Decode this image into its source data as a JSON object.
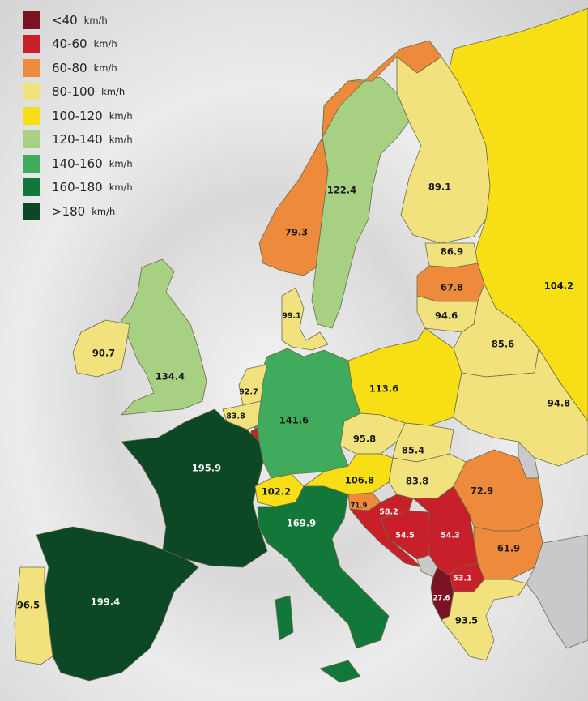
{
  "legend": [
    {
      "range": "<40",
      "unit": "km/h",
      "color": "#7a1224"
    },
    {
      "range": "40-60",
      "unit": "km/h",
      "color": "#c8202b"
    },
    {
      "range": "60-80",
      "unit": "km/h",
      "color": "#ee8a3c"
    },
    {
      "range": "80-100",
      "unit": "km/h",
      "color": "#f1e27e"
    },
    {
      "range": "100-120",
      "unit": "km/h",
      "color": "#f8de14"
    },
    {
      "range": "120-140",
      "unit": "km/h",
      "color": "#a8d083"
    },
    {
      "range": "140-160",
      "unit": "km/h",
      "color": "#40ab5c"
    },
    {
      "range": "160-180",
      "unit": "km/h",
      "color": "#12783a"
    },
    {
      "range": ">180",
      "unit": "km/h",
      "color": "#0c4826"
    }
  ],
  "no_data_color": "#c9c9cb",
  "countries": {
    "norway": {
      "value": "79.3",
      "color": "#ee8a3c"
    },
    "sweden": {
      "value": "122.4",
      "color": "#a8d083"
    },
    "finland": {
      "value": "89.1",
      "color": "#f1e27e"
    },
    "russia": {
      "value": "104.2",
      "color": "#f8de14"
    },
    "estonia": {
      "value": "86.9",
      "color": "#f1e27e"
    },
    "latvia": {
      "value": "67.8",
      "color": "#ee8a3c"
    },
    "lithuania": {
      "value": "94.6",
      "color": "#f1e27e"
    },
    "belarus": {
      "value": "85.6",
      "color": "#f1e27e"
    },
    "ukraine": {
      "value": "94.8",
      "color": "#f1e27e"
    },
    "poland": {
      "value": "113.6",
      "color": "#f8de14"
    },
    "germany": {
      "value": "141.6",
      "color": "#40ab5c"
    },
    "denmark": {
      "value": "99.1",
      "color": "#f1e27e"
    },
    "netherlands": {
      "value": "92.7",
      "color": "#f1e27e"
    },
    "belgium": {
      "value": "83.8",
      "color": "#f1e27e"
    },
    "luxembourg": {
      "color": "#c8202b"
    },
    "united_kingdom": {
      "value": "134.4",
      "color": "#a8d083"
    },
    "ireland": {
      "value": "90.7",
      "color": "#f1e27e"
    },
    "france": {
      "value": "195.9",
      "color": "#0c4826"
    },
    "spain": {
      "value": "199.4",
      "color": "#0c4826"
    },
    "portugal": {
      "value": "96.5",
      "color": "#f1e27e"
    },
    "switzerland": {
      "value": "102.2",
      "color": "#f8de14"
    },
    "italy": {
      "value": "169.9",
      "color": "#12783a"
    },
    "austria": {
      "value": "106.8",
      "color": "#f8de14"
    },
    "czechia": {
      "value": "95.8",
      "color": "#f1e27e"
    },
    "slovakia": {
      "value": "85.4",
      "color": "#f1e27e"
    },
    "hungary": {
      "value": "83.8",
      "color": "#f1e27e"
    },
    "slovenia": {
      "value": "71.9",
      "color": "#ee8a3c"
    },
    "croatia": {
      "value": "58.2",
      "color": "#c8202b"
    },
    "bosnia": {
      "value": "54.5",
      "color": "#c8202b"
    },
    "serbia": {
      "value": "54.3",
      "color": "#c8202b"
    },
    "north_macedonia": {
      "value": "53.1",
      "color": "#c8202b"
    },
    "albania": {
      "value": "27.6",
      "color": "#7a1224"
    },
    "greece": {
      "value": "93.5",
      "color": "#f1e27e"
    },
    "romania": {
      "value": "72.9",
      "color": "#ee8a3c"
    },
    "bulgaria": {
      "value": "61.9",
      "color": "#ee8a3c"
    },
    "moldova": {
      "color": "#c9c9cb"
    },
    "montenegro": {
      "color": "#c9c9cb"
    },
    "turkey": {
      "color": "#c9c9cb"
    }
  }
}
